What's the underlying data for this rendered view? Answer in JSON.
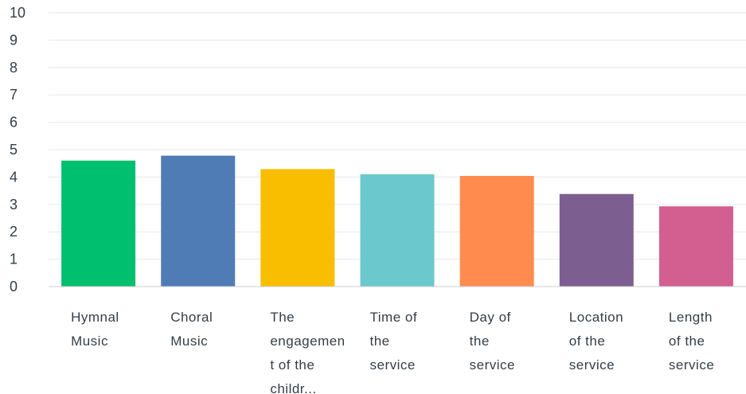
{
  "chart_data": {
    "type": "bar",
    "title": "",
    "xlabel": "",
    "ylabel": "",
    "ylim": [
      0,
      10
    ],
    "yticks": [
      0,
      1,
      2,
      3,
      4,
      5,
      6,
      7,
      8,
      9,
      10
    ],
    "grid": true,
    "categories": [
      "Hymnal Music",
      "Choral Music",
      "The engagement of the childr...",
      "Time of the service",
      "Day of the service",
      "Location of the service",
      "Length of the service"
    ],
    "category_label_lines": [
      [
        "Hymnal",
        "Music"
      ],
      [
        "Choral",
        "Music"
      ],
      [
        "The",
        "engagemen",
        "t of the",
        "childr..."
      ],
      [
        "Time of",
        "the",
        "service"
      ],
      [
        "Day of",
        "the",
        "service"
      ],
      [
        "Location",
        "of the",
        "service"
      ],
      [
        "Length",
        "of the",
        "service"
      ]
    ],
    "values": [
      4.6,
      4.78,
      4.29,
      4.1,
      4.04,
      3.38,
      2.93
    ],
    "colors": [
      "#00bf6f",
      "#507cb6",
      "#f9be00",
      "#6bc8cd",
      "#ff8b4f",
      "#7d5e90",
      "#d25f90"
    ]
  }
}
